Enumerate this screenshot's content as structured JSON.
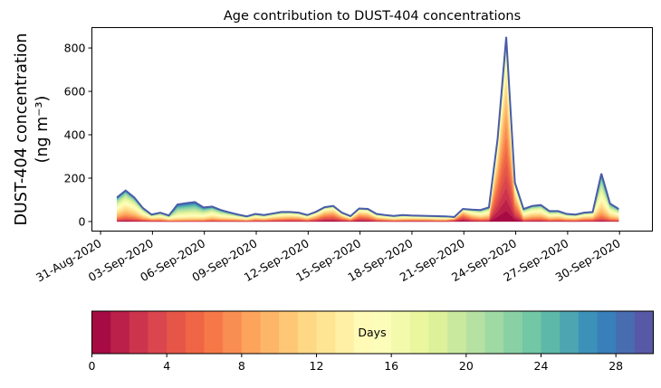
{
  "chart_data": {
    "type": "area",
    "stacked": true,
    "title": "Age contribution to DUST-404 concentrations",
    "ylabel_line1": "DUST-404 concentration",
    "ylabel_line2": "(ng m⁻³)",
    "xlabel": "",
    "x_reference_date": "31-Aug-2020",
    "x_units": "days since 31-Aug-2020",
    "xlim": [
      -0.5,
      31.9
    ],
    "ylim": [
      -44,
      894
    ],
    "yticks": [
      0,
      200,
      400,
      600,
      800
    ],
    "xticks": [
      {
        "day": 0,
        "label": "31-Aug-2020"
      },
      {
        "day": 3,
        "label": "03-Sep-2020"
      },
      {
        "day": 6,
        "label": "06-Sep-2020"
      },
      {
        "day": 9,
        "label": "09-Sep-2020"
      },
      {
        "day": 12,
        "label": "12-Sep-2020"
      },
      {
        "day": 15,
        "label": "15-Sep-2020"
      },
      {
        "day": 18,
        "label": "18-Sep-2020"
      },
      {
        "day": 21,
        "label": "21-Sep-2020"
      },
      {
        "day": 24,
        "label": "24-Sep-2020"
      },
      {
        "day": 27,
        "label": "27-Sep-2020"
      },
      {
        "day": 30,
        "label": "30-Sep-2020"
      }
    ],
    "x_start_day": 0.95,
    "x_step_days": 0.5,
    "total": [
      111,
      143,
      111,
      62,
      32,
      41,
      28,
      79,
      85,
      90,
      65,
      69,
      53,
      42,
      32,
      24,
      35,
      30,
      37,
      44,
      44,
      41,
      30,
      45,
      66,
      72,
      41,
      25,
      60,
      58,
      35,
      30,
      26,
      30,
      28,
      27,
      26,
      25,
      24,
      21,
      58,
      55,
      53,
      65,
      380,
      851,
      180,
      58,
      72,
      76,
      48,
      48,
      35,
      32,
      41,
      44,
      221,
      83,
      58
    ],
    "mean_age_days": [
      14,
      13,
      13,
      13,
      12,
      13,
      14,
      19,
      19,
      19,
      17,
      15,
      15,
      14,
      13,
      13,
      12,
      12,
      11,
      11,
      10,
      10,
      11,
      9,
      7,
      7,
      8,
      10,
      7,
      8,
      10,
      11,
      12,
      12,
      11,
      11,
      11,
      12,
      12,
      6,
      4,
      10,
      12,
      12,
      5,
      5,
      6,
      13,
      12,
      12,
      13,
      12,
      12,
      12,
      11,
      11,
      15,
      14,
      14
    ],
    "age_bins": {
      "count": 30,
      "unit": "days"
    },
    "colormap_anchors": [
      "#9e0142",
      "#d53e4f",
      "#f46d43",
      "#fdae61",
      "#fee08b",
      "#ffffbf",
      "#e6f598",
      "#abdda4",
      "#66c2a5",
      "#3288bd",
      "#5e4fa2"
    ],
    "outline_color": "#4a5ca8",
    "colorbar": {
      "label": "Days",
      "range": [
        0,
        30
      ],
      "ticks": [
        0,
        4,
        8,
        12,
        16,
        20,
        24,
        28
      ]
    }
  }
}
